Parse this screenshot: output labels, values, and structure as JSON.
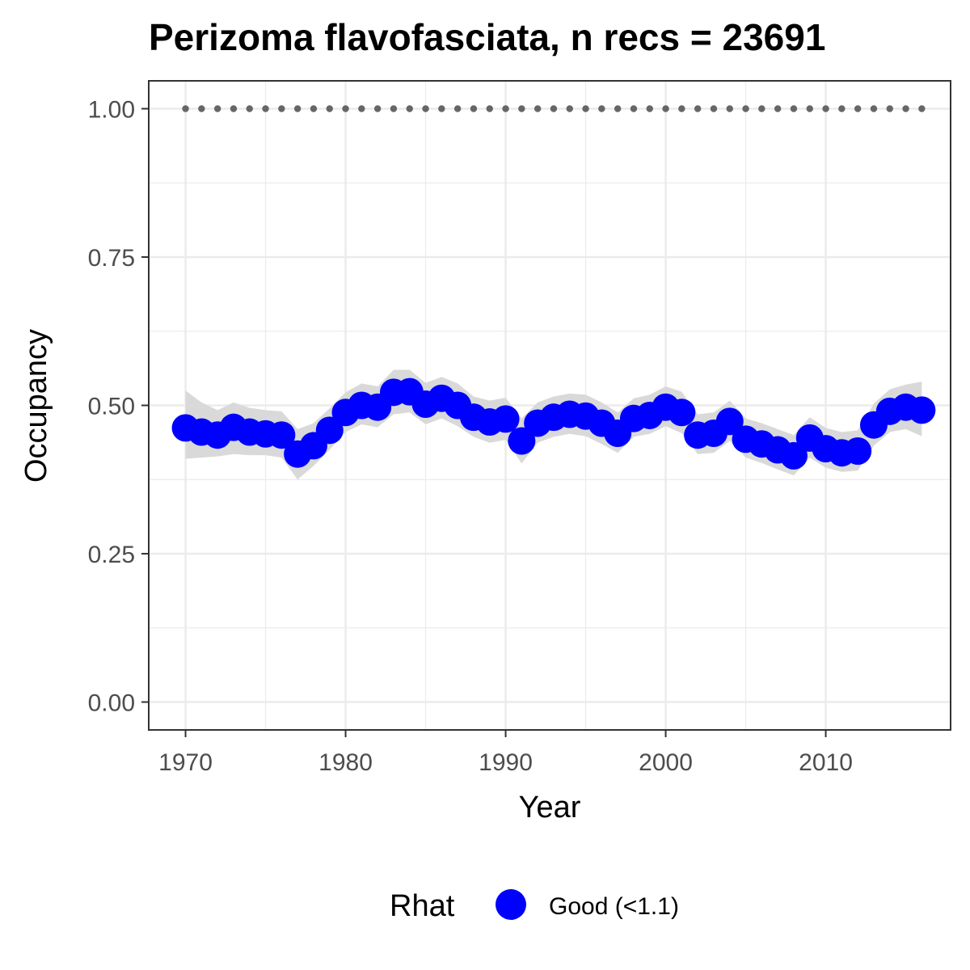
{
  "chart_data": {
    "type": "line",
    "title": "Perizoma flavofasciata, n recs = 23691",
    "xlabel": "Year",
    "ylabel": "Occupancy",
    "xlim": [
      1967.7,
      2017.8
    ],
    "ylim": [
      -0.047,
      1.047
    ],
    "x_ticks": [
      1970,
      1980,
      1990,
      2000,
      2010
    ],
    "y_ticks": [
      0.0,
      0.25,
      0.5,
      0.75,
      1.0
    ],
    "y_tick_labels": [
      "0.00",
      "0.25",
      "0.50",
      "0.75",
      "1.00"
    ],
    "grid": true,
    "legend_position": "bottom",
    "legend_title": "Rhat",
    "colors": {
      "points": "#0000ff",
      "ribbon": "#d9d9d9",
      "reference_dots": "#666666",
      "grid": "#ebebeb",
      "panel_border": "#333333"
    },
    "series": [
      {
        "name": "Good (<1.1)",
        "x": [
          1970,
          1971,
          1972,
          1973,
          1974,
          1975,
          1976,
          1977,
          1978,
          1979,
          1980,
          1981,
          1982,
          1983,
          1984,
          1985,
          1986,
          1987,
          1988,
          1989,
          1990,
          1991,
          1992,
          1993,
          1994,
          1995,
          1996,
          1997,
          1998,
          1999,
          2000,
          2001,
          2002,
          2003,
          2004,
          2005,
          2006,
          2007,
          2008,
          2009,
          2010,
          2011,
          2012,
          2013,
          2014,
          2015,
          2016
        ],
        "y": [
          0.462,
          0.455,
          0.45,
          0.463,
          0.455,
          0.452,
          0.45,
          0.418,
          0.432,
          0.458,
          0.488,
          0.5,
          0.497,
          0.522,
          0.523,
          0.502,
          0.512,
          0.5,
          0.48,
          0.472,
          0.477,
          0.44,
          0.47,
          0.48,
          0.485,
          0.482,
          0.47,
          0.453,
          0.478,
          0.483,
          0.497,
          0.488,
          0.45,
          0.453,
          0.473,
          0.443,
          0.435,
          0.425,
          0.415,
          0.445,
          0.427,
          0.42,
          0.423,
          0.467,
          0.49,
          0.497,
          0.492
        ],
        "lower": [
          0.41,
          0.412,
          0.414,
          0.418,
          0.416,
          0.416,
          0.412,
          0.375,
          0.398,
          0.425,
          0.455,
          0.468,
          0.463,
          0.485,
          0.488,
          0.468,
          0.478,
          0.465,
          0.447,
          0.437,
          0.442,
          0.402,
          0.437,
          0.447,
          0.452,
          0.448,
          0.435,
          0.42,
          0.447,
          0.452,
          0.465,
          0.453,
          0.418,
          0.42,
          0.44,
          0.412,
          0.403,
          0.392,
          0.382,
          0.412,
          0.395,
          0.388,
          0.39,
          0.432,
          0.455,
          0.46,
          0.448
        ],
        "upper": [
          0.525,
          0.505,
          0.492,
          0.505,
          0.496,
          0.492,
          0.49,
          0.46,
          0.47,
          0.495,
          0.522,
          0.537,
          0.532,
          0.56,
          0.56,
          0.538,
          0.548,
          0.537,
          0.515,
          0.508,
          0.513,
          0.478,
          0.505,
          0.515,
          0.52,
          0.518,
          0.505,
          0.488,
          0.512,
          0.518,
          0.532,
          0.523,
          0.485,
          0.488,
          0.508,
          0.478,
          0.47,
          0.46,
          0.45,
          0.48,
          0.462,
          0.455,
          0.458,
          0.503,
          0.527,
          0.535,
          0.54
        ]
      }
    ],
    "reference_line": {
      "x": [
        1970,
        1971,
        1972,
        1973,
        1974,
        1975,
        1976,
        1977,
        1978,
        1979,
        1980,
        1981,
        1982,
        1983,
        1984,
        1985,
        1986,
        1987,
        1988,
        1989,
        1990,
        1991,
        1992,
        1993,
        1994,
        1995,
        1996,
        1997,
        1998,
        1999,
        2000,
        2001,
        2002,
        2003,
        2004,
        2005,
        2006,
        2007,
        2008,
        2009,
        2010,
        2011,
        2012,
        2013,
        2014,
        2015,
        2016
      ],
      "y": 1.0
    }
  }
}
